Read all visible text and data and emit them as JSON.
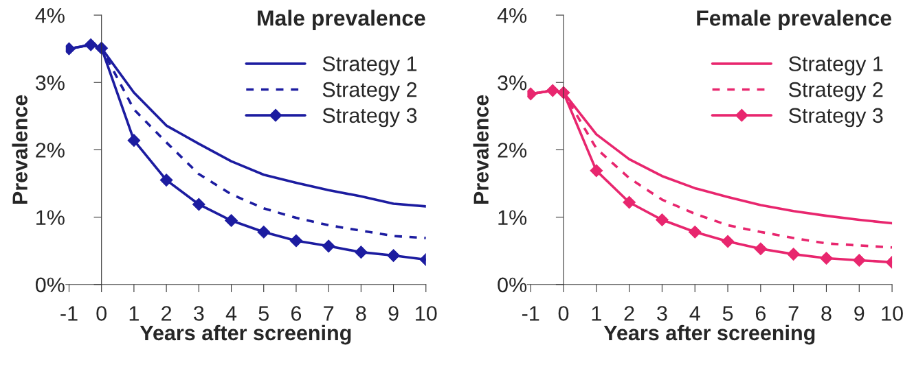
{
  "chart_data": [
    {
      "type": "line",
      "title": "Male prevalence",
      "xlabel": "Years after screening",
      "ylabel": "Prevalence",
      "xlim": [
        -1.1,
        10
      ],
      "xticks": [
        -1,
        0,
        1,
        2,
        3,
        4,
        5,
        6,
        7,
        8,
        9,
        10
      ],
      "ylim": [
        0,
        4
      ],
      "yticks": [
        {
          "value": 0,
          "label": "0%"
        },
        {
          "value": 1,
          "label": "1%"
        },
        {
          "value": 2,
          "label": "2%"
        },
        {
          "value": 3,
          "label": "3%"
        },
        {
          "value": 4,
          "label": "4%"
        }
      ],
      "grid": false,
      "legend": "top right",
      "series": [
        {
          "name": "Strategy 1",
          "color": "#1c1ca0",
          "line_style": "solid",
          "marker": "none",
          "x": [
            -1,
            -0.33,
            0,
            1,
            2,
            3,
            4,
            5,
            6,
            7,
            8,
            9,
            10
          ],
          "values": [
            3.5,
            3.56,
            3.51,
            2.85,
            2.36,
            2.09,
            1.83,
            1.63,
            1.51,
            1.4,
            1.31,
            1.2,
            1.16
          ]
        },
        {
          "name": "Strategy 2",
          "color": "#1c1ca0",
          "line_style": "dashed",
          "marker": "none",
          "x": [
            -1,
            -0.33,
            0,
            1,
            2,
            3,
            4,
            5,
            6,
            7,
            8,
            9,
            10
          ],
          "values": [
            3.5,
            3.56,
            3.51,
            2.6,
            2.11,
            1.64,
            1.34,
            1.13,
            0.99,
            0.88,
            0.8,
            0.72,
            0.69
          ]
        },
        {
          "name": "Strategy 3",
          "color": "#1c1ca0",
          "line_style": "solid",
          "marker": "diamond",
          "x": [
            -1,
            -0.33,
            0,
            1,
            2,
            3,
            4,
            5,
            6,
            7,
            8,
            9,
            10
          ],
          "values": [
            3.5,
            3.56,
            3.51,
            2.14,
            1.55,
            1.19,
            0.95,
            0.78,
            0.65,
            0.57,
            0.48,
            0.43,
            0.37
          ]
        }
      ]
    },
    {
      "type": "line",
      "title": "Female prevalence",
      "xlabel": "Years after screening",
      "ylabel": "Prevalence",
      "xlim": [
        -1.1,
        10
      ],
      "xticks": [
        -1,
        0,
        1,
        2,
        3,
        4,
        5,
        6,
        7,
        8,
        9,
        10
      ],
      "ylim": [
        0,
        4
      ],
      "yticks": [
        {
          "value": 0,
          "label": "0%"
        },
        {
          "value": 1,
          "label": "1%"
        },
        {
          "value": 2,
          "label": "2%"
        },
        {
          "value": 3,
          "label": "3%"
        },
        {
          "value": 4,
          "label": "4%"
        }
      ],
      "grid": false,
      "legend": "top right",
      "series": [
        {
          "name": "Strategy 1",
          "color": "#e8266e",
          "line_style": "solid",
          "marker": "none",
          "x": [
            -1,
            -0.33,
            0,
            1,
            2,
            3,
            4,
            5,
            6,
            7,
            8,
            9,
            10
          ],
          "values": [
            2.83,
            2.88,
            2.85,
            2.23,
            1.86,
            1.61,
            1.43,
            1.3,
            1.18,
            1.09,
            1.02,
            0.96,
            0.91
          ]
        },
        {
          "name": "Strategy 2",
          "color": "#e8266e",
          "line_style": "dashed",
          "marker": "none",
          "x": [
            -1,
            -0.33,
            0,
            1,
            2,
            3,
            4,
            5,
            6,
            7,
            8,
            9,
            10
          ],
          "values": [
            2.83,
            2.88,
            2.85,
            2.02,
            1.58,
            1.26,
            1.05,
            0.88,
            0.78,
            0.69,
            0.61,
            0.58,
            0.55
          ]
        },
        {
          "name": "Strategy 3",
          "color": "#e8266e",
          "line_style": "solid",
          "marker": "diamond",
          "x": [
            -1,
            -0.33,
            0,
            1,
            2,
            3,
            4,
            5,
            6,
            7,
            8,
            9,
            10
          ],
          "values": [
            2.83,
            2.88,
            2.85,
            1.69,
            1.22,
            0.96,
            0.78,
            0.64,
            0.53,
            0.45,
            0.39,
            0.36,
            0.33
          ]
        }
      ]
    }
  ]
}
